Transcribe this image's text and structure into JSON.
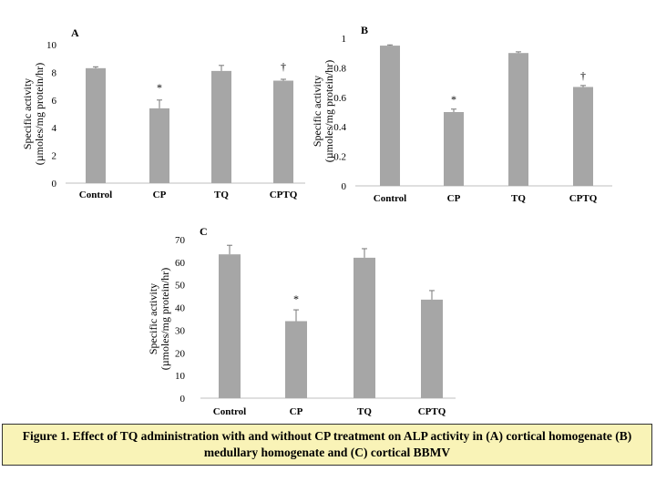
{
  "colors": {
    "bar": "#a6a6a6",
    "axis": "#bfbfbf",
    "text": "#000000",
    "caption_bg": "#f9f3b7"
  },
  "chart_data": [
    {
      "type": "bar",
      "panel": "A",
      "categories": [
        "Control",
        "CP",
        "TQ",
        "CPTQ"
      ],
      "values": [
        8.3,
        5.4,
        8.1,
        7.4
      ],
      "errors": [
        0.1,
        0.6,
        0.4,
        0.1
      ],
      "markers": [
        "",
        "*",
        "",
        "†"
      ],
      "ylim": [
        0,
        10
      ],
      "ticks": [
        "0",
        "2",
        "4",
        "6",
        "8",
        "10"
      ],
      "tick_values": [
        0,
        2,
        4,
        6,
        8,
        10
      ],
      "ylabel_line1": "Specific activity",
      "ylabel_line2": "(µmoles/mg protein/hr)"
    },
    {
      "type": "bar",
      "panel": "B",
      "categories": [
        "Control",
        "CP",
        "TQ",
        "CPTQ"
      ],
      "values": [
        0.95,
        0.5,
        0.9,
        0.67
      ],
      "errors": [
        0.005,
        0.02,
        0.008,
        0.01
      ],
      "markers": [
        "",
        "*",
        "",
        "†"
      ],
      "ylim": [
        0,
        1
      ],
      "ticks": [
        "0",
        "0.2",
        "0.4",
        "0.6",
        "0.8",
        "1"
      ],
      "tick_values": [
        0,
        0.2,
        0.4,
        0.6,
        0.8,
        1
      ],
      "ylabel_line1": "Specific activity",
      "ylabel_line2": "(µmoles/mg protein/hr)"
    },
    {
      "type": "bar",
      "panel": "C",
      "categories": [
        "Control",
        "CP",
        "TQ",
        "CPTQ"
      ],
      "values": [
        63.5,
        34,
        62,
        43.5
      ],
      "errors": [
        4,
        5,
        4,
        4
      ],
      "markers": [
        "",
        "*",
        "",
        ""
      ],
      "ylim": [
        0,
        70
      ],
      "ticks": [
        "0",
        "10",
        "20",
        "30",
        "40",
        "50",
        "60",
        "70"
      ],
      "tick_values": [
        0,
        10,
        20,
        30,
        40,
        50,
        60,
        70
      ],
      "ylabel_line1": "Specific activity",
      "ylabel_line2": "(µmoles/mg protein/hr)"
    }
  ],
  "caption": "Figure 1. Effect of TQ administration with and without CP treatment on ALP activity in (A) cortical homogenate (B) medullary homogenate and (C) cortical BBMV"
}
